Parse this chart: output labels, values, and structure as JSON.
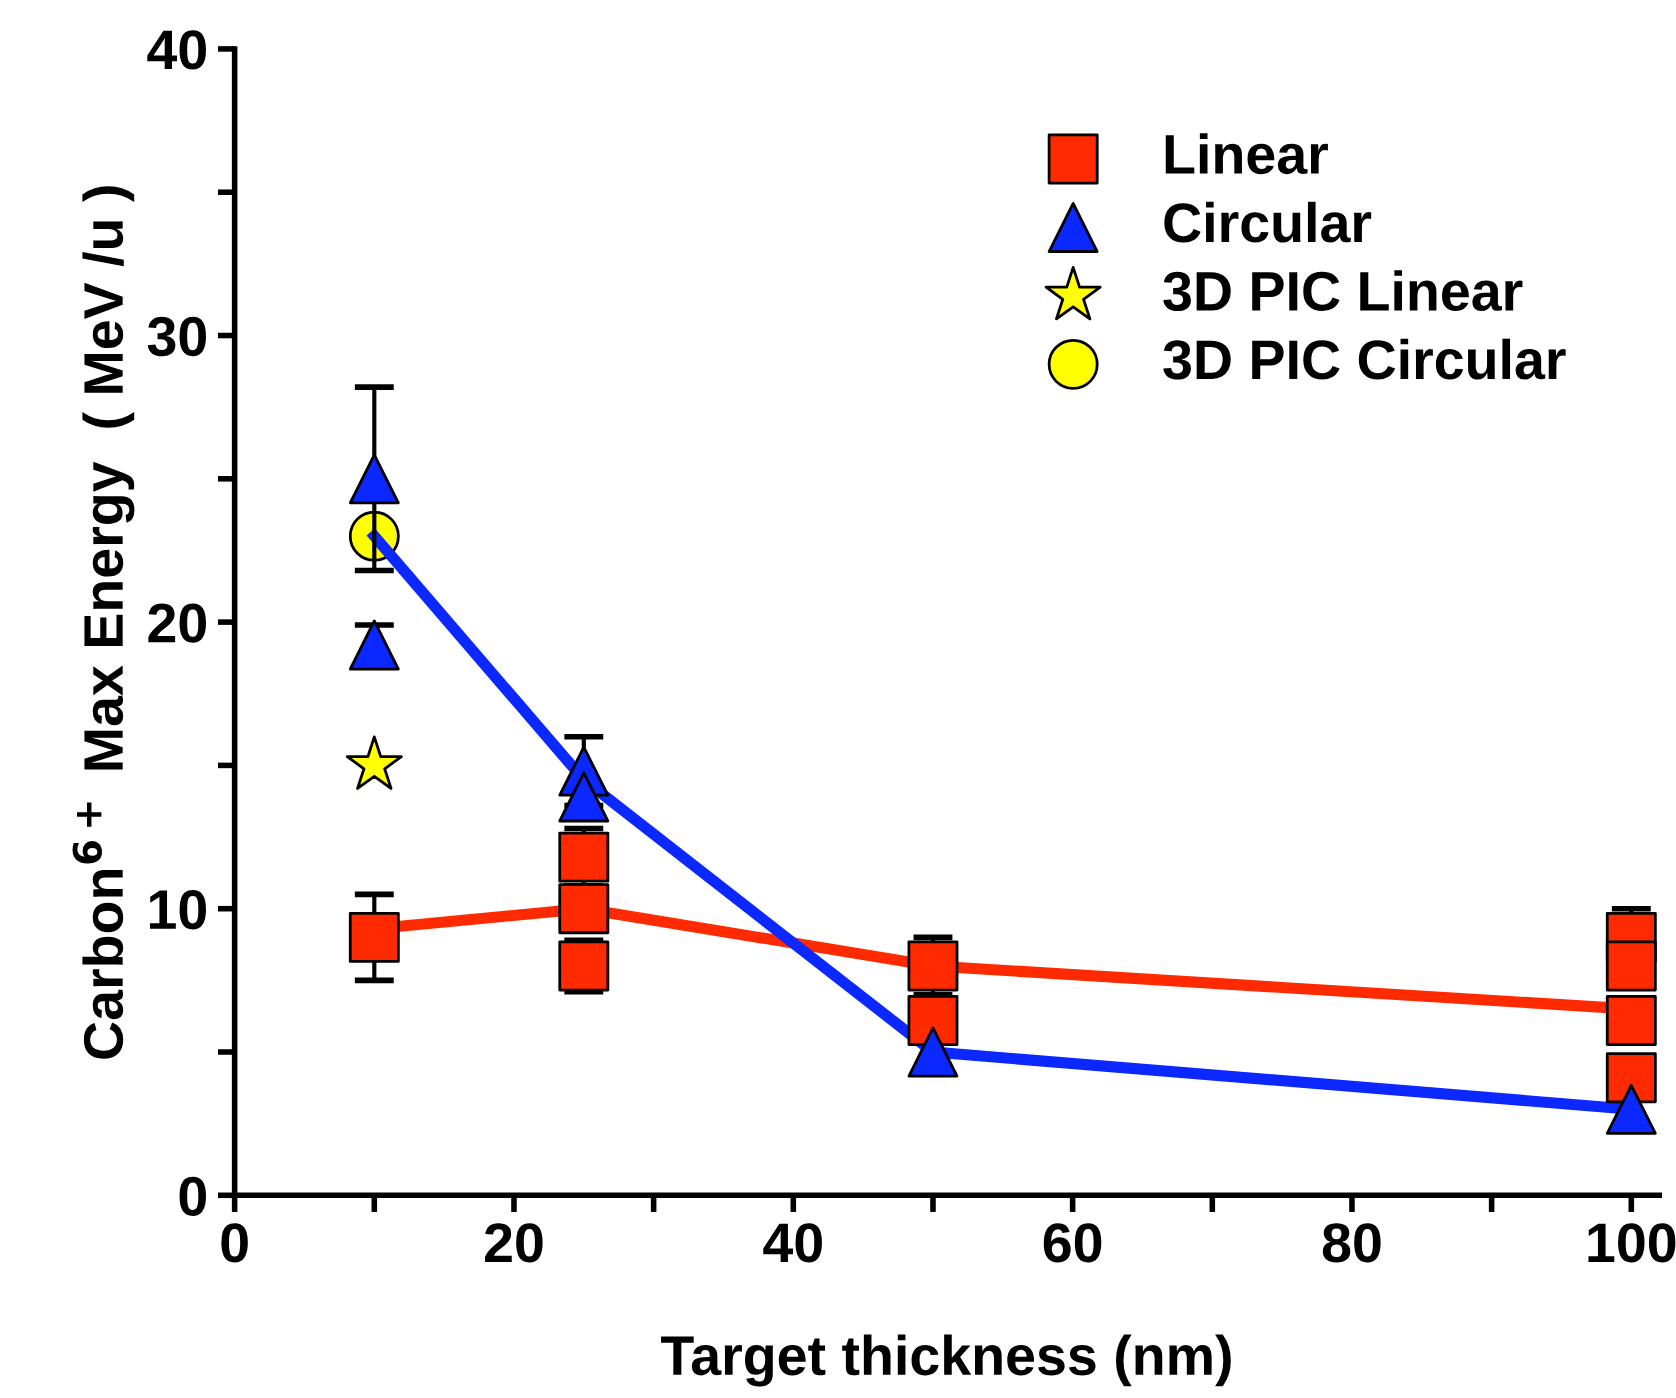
{
  "chart_data": {
    "type": "scatter",
    "xlabel": "Target thickness (nm)",
    "ylabel": "Carbon$^{6+}$ Max Energy  ( MeV /u )",
    "xlim": [
      0,
      102
    ],
    "ylim": [
      0,
      40
    ],
    "xticks": [
      0,
      {
        "value": 10,
        "label": null
      },
      20,
      {
        "value": 30,
        "label": null
      },
      40,
      {
        "value": 50,
        "label": null
      },
      60,
      {
        "value": 70,
        "label": null
      },
      80,
      {
        "value": 90,
        "label": null
      },
      100
    ],
    "yticks": [
      0,
      {
        "value": 5,
        "label": null
      },
      10,
      {
        "value": 15,
        "label": null
      },
      20,
      {
        "value": 25,
        "label": null
      },
      30,
      {
        "value": 35,
        "label": null
      },
      40
    ],
    "legend": "top right",
    "grid": false,
    "series": [
      {
        "type": "line",
        "color": "#ff2a00",
        "marker": "none",
        "x": [
          10,
          25,
          50,
          100
        ],
        "values": [
          9.3,
          10,
          8,
          6.5
        ]
      },
      {
        "type": "line",
        "color": "#0a28ff",
        "marker": "none",
        "x": [
          10,
          25,
          50,
          100
        ],
        "values": [
          23,
          14.5,
          5,
          3
        ]
      },
      {
        "name": "Linear",
        "color": "#ff2a00",
        "marker": "square",
        "x": [
          10,
          25,
          25,
          25,
          50,
          50,
          100,
          100,
          100,
          100
        ],
        "values": [
          9,
          11.8,
          10,
          8,
          8,
          6.1,
          9,
          8,
          6.1,
          4.1
        ],
        "errors": [
          1.5,
          1,
          null,
          0.9,
          1,
          null,
          1,
          null,
          null,
          null
        ]
      },
      {
        "name": "Circular",
        "color": "#0a28ff",
        "marker": "triangle",
        "x": [
          10,
          10,
          25,
          25,
          50,
          100
        ],
        "values": [
          25,
          19.2,
          14.8,
          13.9,
          5,
          3
        ],
        "errors": [
          3.2,
          0.7,
          1.2,
          null,
          null,
          null
        ]
      },
      {
        "name": "3D PIC Linear",
        "color": "#ffff00",
        "marker": "star",
        "x": [
          10
        ],
        "values": [
          15
        ]
      },
      {
        "name": "3D PIC Circular",
        "color": "#ffff00",
        "marker": "circle",
        "x": [
          10
        ],
        "values": [
          23
        ]
      }
    ]
  }
}
